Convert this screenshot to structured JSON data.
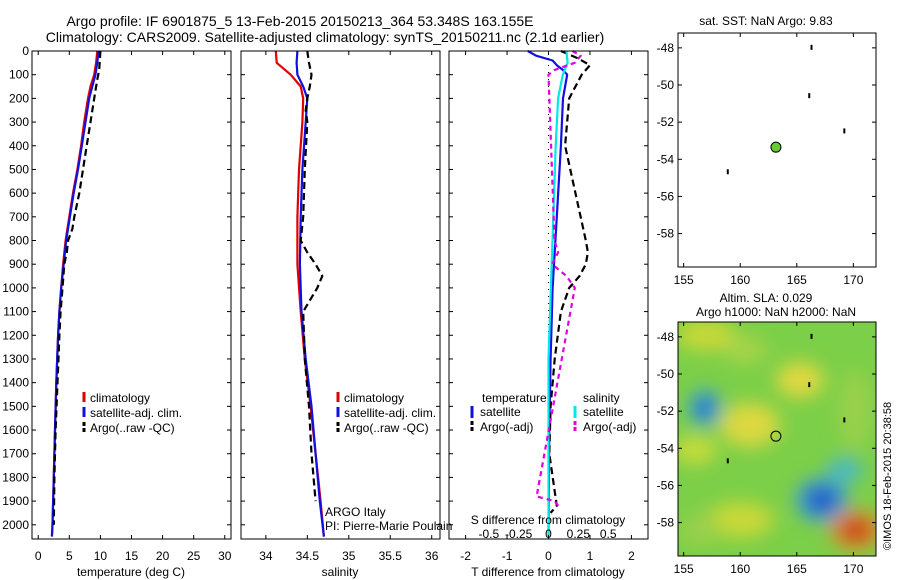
{
  "header": {
    "line1": "Argo profile: IF 6901875_5 13-Feb-2015 20150213_364 53.348S 163.155E",
    "line2": "Climatology: CARS2009. Satellite-adjusted climatology: synTS_20150211.nc (2.1d earlier)"
  },
  "colors": {
    "climatology": "#e00000",
    "satellite": "#1010e0",
    "argo": "#000000",
    "salinity_satellite": "#00e8e8",
    "salinity_argo": "#e000e0",
    "float_marker": "#66cc33"
  },
  "credits": {
    "argo_country": "ARGO Italy",
    "pi": "PI: Pierre-Marie Poulain",
    "watermark": "©IMOS 18-Feb-2015 20:38:58"
  },
  "chart_data": [
    {
      "type": "line",
      "name": "temperature-profile",
      "xlabel": "temperature (deg C)",
      "xlim": [
        -1,
        31
      ],
      "xticks": [
        0,
        5,
        10,
        15,
        20,
        25,
        30
      ],
      "ylim": [
        2060,
        0
      ],
      "yticks": [
        0,
        100,
        200,
        300,
        400,
        500,
        600,
        700,
        800,
        900,
        1000,
        1100,
        1200,
        1300,
        1400,
        1500,
        1600,
        1700,
        1800,
        1900,
        2000
      ],
      "legend_position": "lower-middle",
      "legend": [
        "climatology",
        "satellite-adj. clim.",
        "Argo(..raw -QC)"
      ],
      "series": [
        {
          "name": "climatology",
          "depth": [
            0,
            50,
            100,
            150,
            200,
            300,
            400,
            500,
            600,
            700,
            800,
            900,
            1000,
            1100,
            1200,
            1400,
            1600,
            1800,
            2000,
            2050
          ],
          "values": [
            9.5,
            9.3,
            9.0,
            8.4,
            8.0,
            7.4,
            6.9,
            6.3,
            5.6,
            5.0,
            4.4,
            4.0,
            3.7,
            3.4,
            3.2,
            2.9,
            2.7,
            2.5,
            2.3,
            2.2
          ]
        },
        {
          "name": "satellite-adj. clim.",
          "depth": [
            0,
            50,
            100,
            150,
            200,
            300,
            400,
            500,
            600,
            700,
            800,
            900,
            1000,
            1100,
            1200,
            1400,
            1600,
            1800,
            2000,
            2050
          ],
          "values": [
            9.7,
            9.5,
            9.2,
            8.7,
            8.2,
            7.6,
            7.0,
            6.4,
            5.7,
            5.1,
            4.5,
            4.1,
            3.7,
            3.4,
            3.2,
            2.9,
            2.7,
            2.5,
            2.3,
            2.2
          ]
        },
        {
          "name": "Argo(..raw -QC)",
          "depth": [
            0,
            40,
            80,
            120,
            200,
            300,
            400,
            500,
            600,
            700,
            750,
            800,
            850,
            900,
            1000,
            1100,
            1200,
            1400,
            1600,
            1800,
            2000
          ],
          "values": [
            10.0,
            9.9,
            9.8,
            9.5,
            9.0,
            8.4,
            7.8,
            7.2,
            6.6,
            5.8,
            5.5,
            4.8,
            4.6,
            4.2,
            3.9,
            3.6,
            3.4,
            3.1,
            2.8,
            2.6,
            2.5
          ]
        }
      ]
    },
    {
      "type": "line",
      "name": "salinity-profile",
      "xlabel": "salinity",
      "xlim": [
        33.7,
        36.1
      ],
      "xticks": [
        34,
        34.5,
        35,
        35.5,
        36
      ],
      "ylim": [
        2060,
        0
      ],
      "legend_position": "lower-middle",
      "legend": [
        "climatology",
        "satellite-adj. clim.",
        "Argo(..raw -QC)"
      ],
      "series": [
        {
          "name": "climatology",
          "depth": [
            0,
            50,
            100,
            150,
            200,
            300,
            500,
            700,
            900,
            1100,
            1300,
            1500,
            1700,
            1900,
            2050
          ],
          "values": [
            34.12,
            34.13,
            34.3,
            34.42,
            34.45,
            34.44,
            34.4,
            34.38,
            34.38,
            34.42,
            34.47,
            34.54,
            34.6,
            34.66,
            34.7
          ]
        },
        {
          "name": "satellite-adj. clim.",
          "depth": [
            0,
            50,
            100,
            150,
            200,
            300,
            500,
            700,
            900,
            1100,
            1300,
            1500,
            1700,
            1900,
            2050
          ],
          "values": [
            34.38,
            34.37,
            34.38,
            34.45,
            34.5,
            34.48,
            34.44,
            34.42,
            34.41,
            34.43,
            34.48,
            34.55,
            34.6,
            34.65,
            34.7
          ]
        },
        {
          "name": "Argo(..raw -QC)",
          "depth": [
            0,
            50,
            100,
            150,
            200,
            250,
            300,
            500,
            700,
            800,
            850,
            900,
            950,
            1000,
            1100,
            1300,
            1500,
            1700,
            1900
          ],
          "values": [
            34.5,
            34.52,
            34.55,
            34.53,
            34.5,
            34.48,
            34.5,
            34.47,
            34.45,
            34.42,
            34.5,
            34.6,
            34.68,
            34.62,
            34.45,
            34.47,
            34.52,
            34.55,
            34.6
          ]
        }
      ]
    },
    {
      "type": "line",
      "name": "difference-profile",
      "xlabel": "T difference from climatology",
      "xlabel_secondary": "S difference from climatology",
      "xlim": [
        -2.4,
        2.4
      ],
      "xticks": [
        -2,
        -1,
        0,
        1,
        2
      ],
      "xticks_secondary": [
        -0.5,
        -0.25,
        0,
        0.25,
        0.5
      ],
      "ylim": [
        2060,
        0
      ],
      "legend_position": "lower-middle",
      "legend_headers": [
        "temperature",
        "salinity"
      ],
      "legend": [
        "satellite",
        "Argo(-adj)",
        "satellite",
        "Argo(-adj)"
      ],
      "series": [
        {
          "name": "temperature satellite",
          "depth": [
            0,
            20,
            40,
            60,
            80,
            100,
            150,
            200,
            400,
            700,
            1000,
            1300,
            1600,
            2050
          ],
          "values": [
            -0.5,
            -0.3,
            0.1,
            0.2,
            0.35,
            0.45,
            0.4,
            0.35,
            0.3,
            0.2,
            0.1,
            0.05,
            0.02,
            0.0
          ]
        },
        {
          "name": "temperature Argo(-adj)",
          "depth": [
            0,
            30,
            60,
            100,
            200,
            400,
            800,
            850,
            900,
            950,
            1000,
            1100,
            1300,
            1500,
            1700,
            1920,
            1950
          ],
          "values": [
            0.3,
            0.7,
            1.0,
            0.8,
            0.5,
            0.4,
            0.9,
            0.95,
            0.9,
            0.75,
            0.5,
            0.3,
            0.15,
            0.05,
            0.02,
            0.2,
            0.05
          ]
        },
        {
          "name": "salinity satellite",
          "depth": [
            0,
            50,
            100,
            200,
            400,
            700,
            1000,
            1300,
            1600,
            2050
          ],
          "values": [
            0.15,
            0.16,
            0.12,
            0.08,
            0.06,
            0.04,
            0.02,
            0.0,
            0.0,
            0.0
          ]
        },
        {
          "name": "salinity Argo(-adj)",
          "depth": [
            0,
            20,
            50,
            80,
            100,
            800,
            850,
            900,
            950,
            1000,
            1880,
            1900,
            1930
          ],
          "values": [
            0.2,
            0.27,
            0.22,
            0.05,
            0.0,
            0.05,
            0.08,
            0.03,
            0.15,
            0.22,
            -0.1,
            0.05,
            0.1
          ]
        }
      ]
    },
    {
      "type": "scatter",
      "name": "sst-map",
      "title": "sat. SST: NaN Argo: 9.83",
      "xlim": [
        154.5,
        172
      ],
      "xticks": [
        155,
        160,
        165,
        170
      ],
      "ylim": [
        -59.8,
        -47.2
      ],
      "yticks": [
        -48,
        -50,
        -52,
        -54,
        -56,
        -58
      ],
      "float_position": {
        "lon": 163.155,
        "lat": -53.348
      }
    },
    {
      "type": "heatmap",
      "name": "sla-map",
      "title_line1": "Altim. SLA: 0.029",
      "title_line2": "Argo h1000: NaN h2000: NaN",
      "xlim": [
        154.5,
        172
      ],
      "xticks": [
        155,
        160,
        165,
        170
      ],
      "ylim": [
        -59.8,
        -47.2
      ],
      "yticks": [
        -48,
        -50,
        -52,
        -54,
        -56,
        -58
      ],
      "float_position": {
        "lon": 163.155,
        "lat": -53.348
      }
    }
  ]
}
